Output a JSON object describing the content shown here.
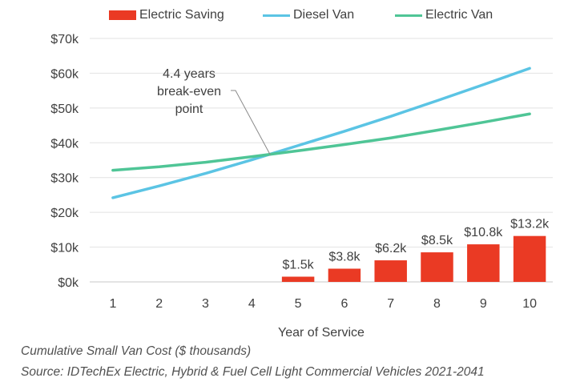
{
  "chart_data": {
    "type": "bar+line",
    "x": [
      1,
      2,
      3,
      4,
      5,
      6,
      7,
      8,
      9,
      10
    ],
    "categories": [
      "1",
      "2",
      "3",
      "4",
      "5",
      "6",
      "7",
      "8",
      "9",
      "10"
    ],
    "xlabel": "Year of Service",
    "ylabel": "",
    "ylim": [
      0,
      70
    ],
    "yticks": [
      "$0k",
      "$10k",
      "$20k",
      "$30k",
      "$40k",
      "$50k",
      "$60k",
      "$70k"
    ],
    "grid": "horizontal",
    "legend_position": "top",
    "series": [
      {
        "name": "Electric Saving",
        "type": "bar",
        "color": "#ea3a24",
        "values": [
          0,
          0,
          0,
          0,
          1.5,
          3.8,
          6.2,
          8.5,
          10.8,
          13.2
        ],
        "labels": [
          "",
          "",
          "",
          "",
          "$1.5k",
          "$3.8k",
          "$6.2k",
          "$8.5k",
          "$10.8k",
          "$13.2k"
        ]
      },
      {
        "name": "Diesel Van",
        "type": "line",
        "color": "#5bc4e4",
        "values": [
          24.2,
          27.6,
          31.2,
          35.1,
          39.2,
          43.3,
          47.6,
          52.1,
          56.7,
          61.4
        ]
      },
      {
        "name": "Electric Van",
        "type": "line",
        "color": "#4fc596",
        "values": [
          32.1,
          33.1,
          34.4,
          36.0,
          37.7,
          39.5,
          41.4,
          43.6,
          45.9,
          48.3
        ]
      }
    ],
    "annotation": {
      "text_lines": [
        "4.4 years",
        "break-even",
        "point"
      ],
      "x": 4.4,
      "y": 36.5
    }
  },
  "captions": {
    "line1": "Cumulative Small Van Cost ($ thousands)",
    "line2": "Source: IDTechEx Electric, Hybrid & Fuel Cell Light Commercial Vehicles 2021-2041"
  }
}
